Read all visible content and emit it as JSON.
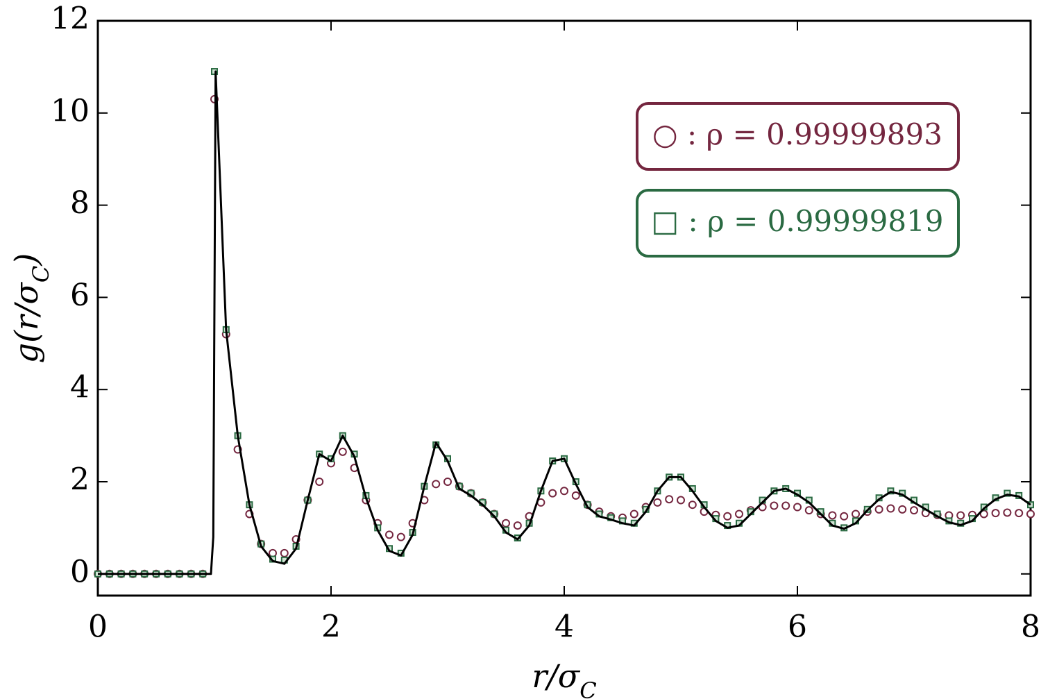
{
  "chart_data": {
    "type": "scatter",
    "xlabel": "r/σC",
    "ylabel": "g(r/σC)",
    "xlim": [
      0,
      8
    ],
    "ylim": [
      -0.47,
      12
    ],
    "xticks": [
      0,
      2,
      4,
      6,
      8
    ],
    "yticks": [
      0,
      2,
      4,
      6,
      8,
      10,
      12
    ],
    "legend": "upper right",
    "x": [
      0,
      0.1,
      0.2,
      0.3,
      0.4,
      0.5,
      0.6,
      0.7,
      0.8,
      0.9,
      1.0,
      1.1,
      1.2,
      1.3,
      1.4,
      1.5,
      1.6,
      1.7,
      1.8,
      1.9,
      2.0,
      2.1,
      2.2,
      2.3,
      2.4,
      2.5,
      2.6,
      2.7,
      2.8,
      2.9,
      3.0,
      3.1,
      3.2,
      3.3,
      3.4,
      3.5,
      3.6,
      3.7,
      3.8,
      3.9,
      4.0,
      4.1,
      4.2,
      4.3,
      4.4,
      4.5,
      4.6,
      4.7,
      4.8,
      4.9,
      5.0,
      5.1,
      5.2,
      5.3,
      5.4,
      5.5,
      5.6,
      5.7,
      5.8,
      5.9,
      6.0,
      6.1,
      6.2,
      6.3,
      6.4,
      6.5,
      6.6,
      6.7,
      6.8,
      6.9,
      7.0,
      7.1,
      7.2,
      7.3,
      7.4,
      7.5,
      7.6,
      7.7,
      7.8,
      7.9,
      8.0
    ],
    "series": [
      {
        "name": "○ : ρ =  0.99999893",
        "marker": "circle",
        "color": "#74263f",
        "values": [
          0,
          0,
          0,
          0,
          0,
          0,
          0,
          0,
          0,
          0,
          10.3,
          5.2,
          2.7,
          1.3,
          0.65,
          0.45,
          0.45,
          0.75,
          1.6,
          2.0,
          2.4,
          2.65,
          2.3,
          1.6,
          1.1,
          0.85,
          0.8,
          1.1,
          1.6,
          1.95,
          2.0,
          1.9,
          1.75,
          1.55,
          1.3,
          1.1,
          1.05,
          1.25,
          1.55,
          1.75,
          1.8,
          1.7,
          1.5,
          1.35,
          1.25,
          1.22,
          1.3,
          1.45,
          1.55,
          1.62,
          1.6,
          1.5,
          1.35,
          1.28,
          1.25,
          1.3,
          1.38,
          1.45,
          1.48,
          1.48,
          1.45,
          1.38,
          1.3,
          1.27,
          1.25,
          1.3,
          1.35,
          1.4,
          1.42,
          1.4,
          1.38,
          1.32,
          1.28,
          1.27,
          1.27,
          1.28,
          1.3,
          1.32,
          1.33,
          1.32,
          1.3
        ]
      },
      {
        "name": "□ : ρ =  0.99999819",
        "marker": "square",
        "color": "#2a6a42",
        "values": [
          0,
          0,
          0,
          0,
          0,
          0,
          0,
          0,
          0,
          0,
          10.9,
          5.3,
          3.0,
          1.5,
          0.65,
          0.32,
          0.3,
          0.6,
          1.6,
          2.6,
          2.5,
          3.0,
          2.6,
          1.7,
          1.0,
          0.55,
          0.45,
          0.9,
          1.9,
          2.8,
          2.5,
          1.9,
          1.75,
          1.55,
          1.3,
          0.95,
          0.78,
          1.1,
          1.8,
          2.45,
          2.5,
          2.0,
          1.5,
          1.3,
          1.22,
          1.15,
          1.1,
          1.4,
          1.8,
          2.1,
          2.1,
          1.85,
          1.5,
          1.2,
          1.05,
          1.1,
          1.35,
          1.6,
          1.8,
          1.85,
          1.75,
          1.6,
          1.35,
          1.1,
          1.0,
          1.15,
          1.4,
          1.65,
          1.8,
          1.75,
          1.6,
          1.45,
          1.3,
          1.15,
          1.1,
          1.2,
          1.45,
          1.65,
          1.75,
          1.7,
          1.5
        ]
      },
      {
        "marker": "line",
        "color": "#000000",
        "x": [
          0,
          0.97,
          0.99,
          1.01,
          1.1,
          1.2,
          1.3,
          1.4,
          1.5,
          1.6,
          1.7,
          1.8,
          1.9,
          2.0,
          2.1,
          2.2,
          2.3,
          2.4,
          2.5,
          2.6,
          2.7,
          2.8,
          2.9,
          3.0,
          3.1,
          3.2,
          3.3,
          3.4,
          3.5,
          3.6,
          3.7,
          3.8,
          3.9,
          4.0,
          4.1,
          4.2,
          4.3,
          4.4,
          4.5,
          4.6,
          4.7,
          4.8,
          4.9,
          5.0,
          5.1,
          5.2,
          5.3,
          5.4,
          5.5,
          5.6,
          5.7,
          5.8,
          5.9,
          6.0,
          6.1,
          6.2,
          6.3,
          6.4,
          6.5,
          6.6,
          6.7,
          6.8,
          6.9,
          7.0,
          7.1,
          7.2,
          7.3,
          7.4,
          7.5,
          7.6,
          7.7,
          7.8,
          7.9,
          8.0
        ],
        "values": [
          0,
          0,
          0.8,
          10.9,
          5.3,
          3.0,
          1.5,
          0.6,
          0.28,
          0.22,
          0.55,
          1.6,
          2.6,
          2.45,
          3.0,
          2.55,
          1.65,
          0.95,
          0.5,
          0.4,
          0.85,
          1.9,
          2.85,
          2.45,
          1.85,
          1.7,
          1.5,
          1.25,
          0.9,
          0.75,
          1.05,
          1.8,
          2.45,
          2.5,
          1.95,
          1.45,
          1.25,
          1.18,
          1.1,
          1.05,
          1.35,
          1.8,
          2.1,
          2.1,
          1.8,
          1.45,
          1.15,
          1.0,
          1.05,
          1.3,
          1.55,
          1.8,
          1.85,
          1.72,
          1.55,
          1.3,
          1.05,
          0.98,
          1.1,
          1.38,
          1.62,
          1.78,
          1.72,
          1.55,
          1.4,
          1.25,
          1.12,
          1.06,
          1.15,
          1.42,
          1.62,
          1.72,
          1.68,
          1.5
        ]
      }
    ]
  }
}
